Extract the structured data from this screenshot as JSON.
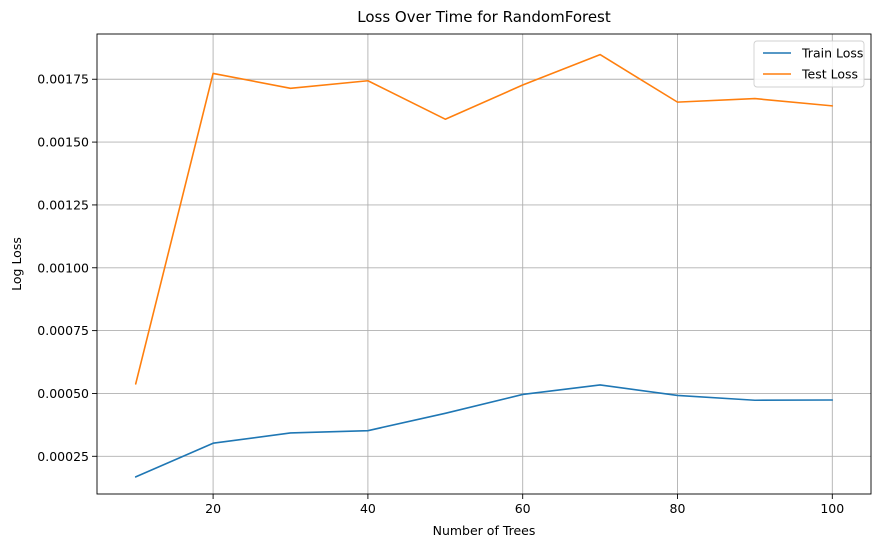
{
  "chart_data": {
    "type": "line",
    "title": "Loss Over Time for RandomForest",
    "xlabel": "Number of Trees",
    "ylabel": "Log Loss",
    "x": [
      10,
      20,
      30,
      40,
      50,
      60,
      70,
      80,
      90,
      100
    ],
    "xlim": [
      5,
      105
    ],
    "ylim": [
      0.0001,
      0.00193
    ],
    "xticks": [
      20,
      40,
      60,
      80,
      100
    ],
    "xtick_labels": [
      "20",
      "40",
      "60",
      "80",
      "100"
    ],
    "yticks": [
      0.00025,
      0.0005,
      0.00075,
      0.001,
      0.00125,
      0.0015,
      0.00175
    ],
    "ytick_labels": [
      "0.00025",
      "0.00050",
      "0.00075",
      "0.00100",
      "0.00125",
      "0.00150",
      "0.00175"
    ],
    "grid": true,
    "legend_position": "top-right",
    "series": [
      {
        "name": "Train Loss",
        "color": "#1f77b4",
        "values": [
          0.000168,
          0.000302,
          0.000343,
          0.000352,
          0.000421,
          0.000496,
          0.000534,
          0.000492,
          0.000473,
          0.000474
        ]
      },
      {
        "name": "Test Loss",
        "color": "#ff7f0e",
        "values": [
          0.000538,
          0.001773,
          0.001714,
          0.001744,
          0.001591,
          0.001727,
          0.001848,
          0.001659,
          0.001673,
          0.001644
        ]
      }
    ]
  }
}
